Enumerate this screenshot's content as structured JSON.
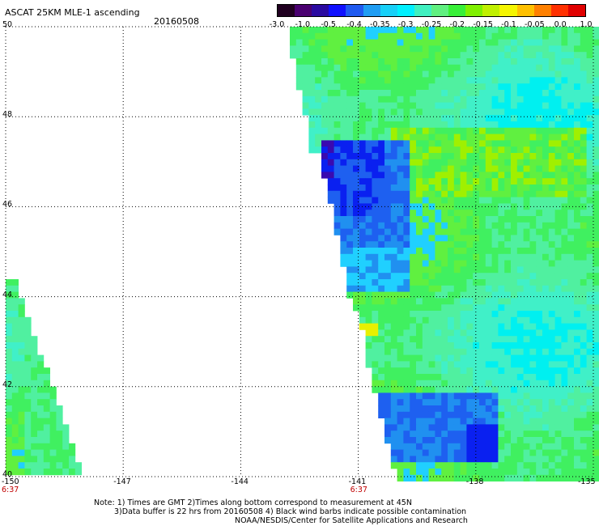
{
  "header": {
    "title": "ASCAT 25KM MLE-1 ascending",
    "date": "20160508"
  },
  "colorbar": {
    "colors": [
      "#200020",
      "#4a0070",
      "#2a0aa0",
      "#1010ff",
      "#1f5af0",
      "#1f9df3",
      "#18d0f8",
      "#00f0ff",
      "#40f0c0",
      "#60f080",
      "#38f038",
      "#80f000",
      "#c0f000",
      "#f5f500",
      "#ffc000",
      "#ff8000",
      "#ff3000",
      "#e00000"
    ],
    "labels": [
      "-3.0",
      "-1.0",
      "-0.5",
      "-0.4",
      "-0.35",
      "-0.3",
      "-0.25",
      "-0.2",
      "-0.15",
      "-0.1",
      "-0.05",
      "0.0",
      "1.0"
    ]
  },
  "chart_data": {
    "type": "heatmap",
    "title": "ASCAT 25KM MLE-1 ascending",
    "date": "20160508",
    "x_ticks": [
      "-150",
      "-147",
      "-144",
      "-141",
      "-138",
      "-135"
    ],
    "y_ticks": [
      "50",
      "48",
      "46",
      "44",
      "42",
      "40"
    ],
    "xlim": [
      -150,
      -135
    ],
    "ylim": [
      40,
      50
    ],
    "grid": true,
    "time_labels": [
      {
        "lon": -150,
        "text": "6:37"
      },
      {
        "lon": -141,
        "text": "6:37"
      }
    ],
    "swaths": [
      {
        "name": "west",
        "description_levels": "mostly -0.3 to -0.2 with small -0.15 patches"
      },
      {
        "name": "east",
        "description_levels": "mostly -0.2 to -0.15 with -0.4 to -0.5 patches near 46-47.5N,143W and 41N,140-138W"
      }
    ]
  },
  "notes": {
    "line1": "Note: 1) Times are GMT 2)Times along bottom correspond to measurement at 45N",
    "line2": "3)Data buffer is 22 hrs from 20160508 4) Black wind barbs indicate possible contamination",
    "line3": "NOAA/NESDIS/Center for Satellite Applications and Research"
  }
}
